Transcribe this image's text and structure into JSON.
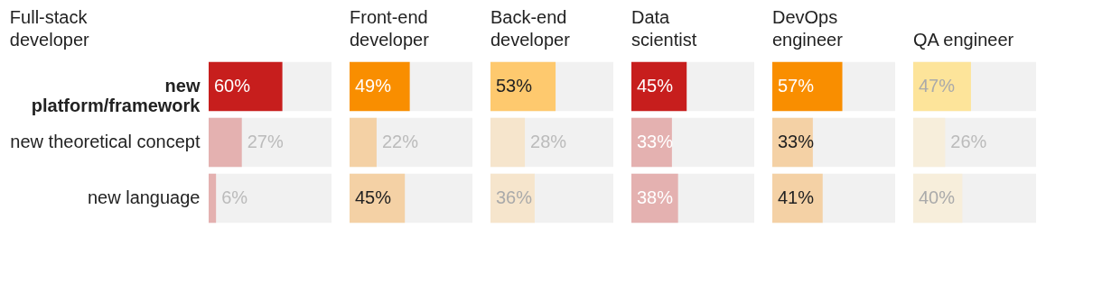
{
  "chart_data": [
    {
      "type": "bar",
      "orientation": "horizontal",
      "title": "Full-stack developer",
      "categories": [
        "new platform/framework",
        "new theoretical concept",
        "new language"
      ],
      "values": [
        60,
        27,
        6
      ],
      "value_labels": [
        "60%",
        "27%",
        "6%"
      ],
      "colors": [
        "#c71e1d",
        "#e4b1b0",
        "#e4b1b0"
      ],
      "xlim": [
        0,
        100
      ],
      "tick_labels": "y"
    },
    {
      "type": "bar",
      "orientation": "horizontal",
      "title": "Front-end developer",
      "categories": [
        null,
        null,
        null
      ],
      "values": [
        49,
        22,
        45
      ],
      "value_labels": [
        "49%",
        "22%",
        "45%"
      ],
      "colors": [
        "#f98e00",
        "#f4d1a5",
        "#f4d1a5"
      ],
      "xlim": [
        0,
        100
      ],
      "tick_labels": false
    },
    {
      "type": "bar",
      "orientation": "horizontal",
      "title": "Back-end developer",
      "categories": [
        null,
        null,
        null
      ],
      "values": [
        53,
        28,
        36
      ],
      "value_labels": [
        "53%",
        "28%",
        "36%"
      ],
      "colors": [
        "#fec96e",
        "#f6e5cc",
        "#f6e5cc"
      ],
      "xlim": [
        0,
        100
      ],
      "tick_labels": false
    },
    {
      "type": "bar",
      "orientation": "horizontal",
      "title": "Data scientist",
      "categories": [
        null,
        null,
        null
      ],
      "values": [
        45,
        33,
        38
      ],
      "value_labels": [
        "45%",
        "33%",
        "38%"
      ],
      "colors": [
        "#c71e1d",
        "#e4b1b0",
        "#e4b1b0"
      ],
      "xlim": [
        0,
        100
      ],
      "tick_labels": false
    },
    {
      "type": "bar",
      "orientation": "horizontal",
      "title": "DevOps engineer",
      "categories": [
        null,
        null,
        null
      ],
      "values": [
        57,
        33,
        41
      ],
      "value_labels": [
        "57%",
        "33%",
        "41%"
      ],
      "colors": [
        "#f98e00",
        "#f4d1a5",
        "#f4d1a5"
      ],
      "xlim": [
        0,
        100
      ],
      "tick_labels": false
    },
    {
      "type": "bar",
      "orientation": "horizontal",
      "title": "QA engineer",
      "categories": [
        null,
        null,
        null
      ],
      "values": [
        47,
        26,
        40
      ],
      "value_labels": [
        "47%",
        "26%",
        "40%"
      ],
      "colors": [
        "#fde49a",
        "#f7eedb",
        "#f7eedb"
      ],
      "xlim": [
        0,
        100
      ],
      "tick_labels": false
    }
  ]
}
